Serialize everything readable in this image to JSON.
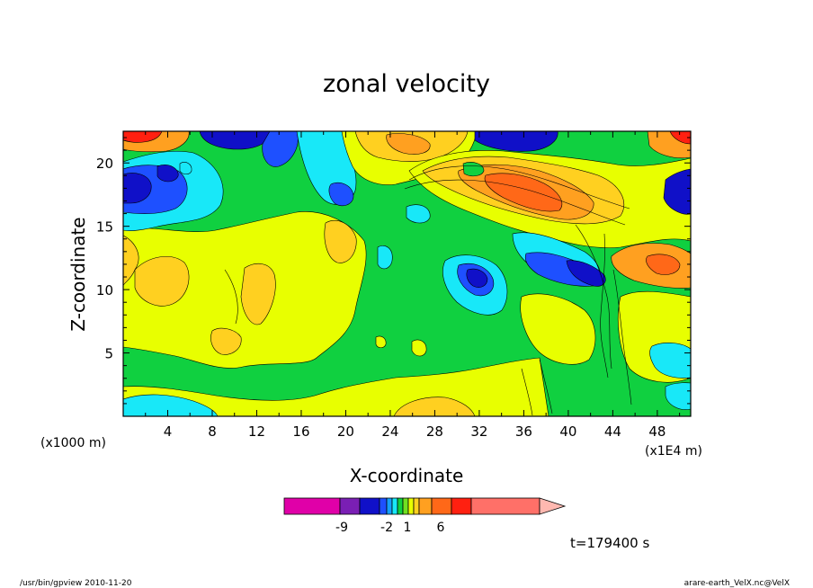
{
  "chart_data": {
    "type": "heatmap",
    "title": "zonal velocity",
    "xlabel": "X-coordinate",
    "ylabel": "Z-coordinate",
    "x_unit_left": "(x1000 m)",
    "x_unit_right": "(x1E4 m)",
    "x_ticks": [
      "4",
      "8",
      "12",
      "16",
      "20",
      "24",
      "28",
      "32",
      "36",
      "40",
      "44",
      "48"
    ],
    "y_ticks": [
      "5",
      "10",
      "15",
      "20"
    ],
    "xlim": [
      0,
      51
    ],
    "ylim": [
      0,
      22.5
    ],
    "colorbar": {
      "labels": [
        "-9",
        "-2",
        "1",
        "6"
      ],
      "colors": [
        "#e000a8",
        "#7a1fb4",
        "#1010c8",
        "#1e50ff",
        "#14a0ff",
        "#18e8f8",
        "#10d040",
        "#70e020",
        "#e8ff00",
        "#ffd020",
        "#ffa020",
        "#ff6818",
        "#ff2010",
        "#ff7068",
        "#ffb8b0"
      ]
    },
    "time_label": "t=179400 s"
  },
  "footer": {
    "left": "/usr/bin/gpview   2010-11-20",
    "right": "arare-earth_VelX.nc@VelX"
  }
}
